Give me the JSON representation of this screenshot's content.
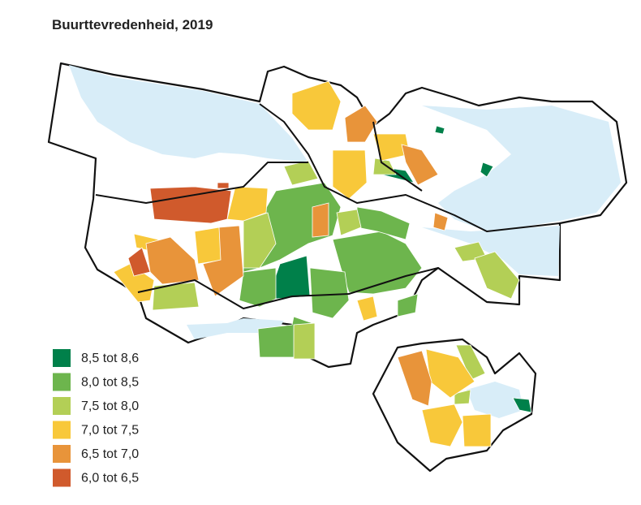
{
  "title": "Buurttevredenheid, 2019",
  "legend": [
    {
      "label": "8,5 tot 8,6",
      "color": "#00804a"
    },
    {
      "label": "8,0 tot 8,5",
      "color": "#6db54d"
    },
    {
      "label": "7,5 tot 8,0",
      "color": "#b3cf56"
    },
    {
      "label": "7,0 tot 7,5",
      "color": "#f8c83a"
    },
    {
      "label": "6,5 tot 7,0",
      "color": "#e8943a"
    },
    {
      "label": "6,0 tot 6,5",
      "color": "#d05a2c"
    }
  ]
}
